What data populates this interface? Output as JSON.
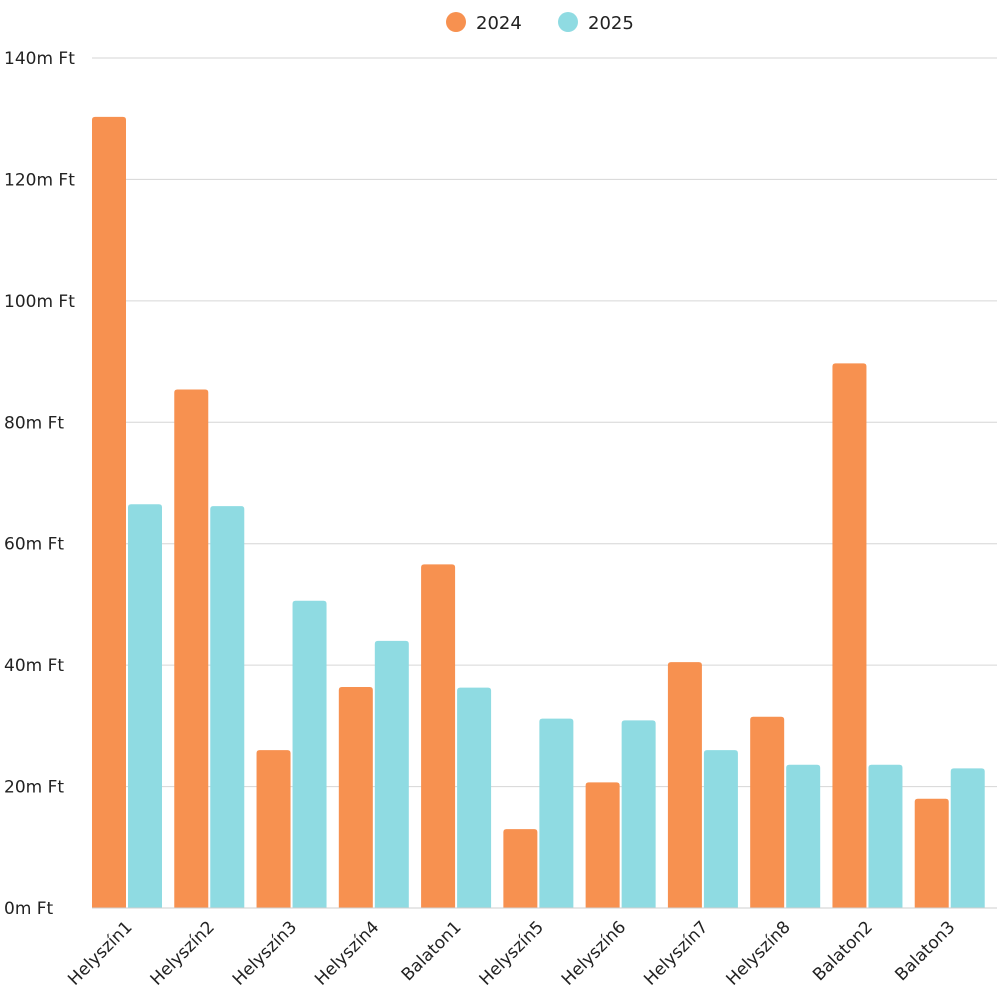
{
  "chart_data": {
    "type": "bar",
    "categories": [
      "Helyszín1",
      "Helyszín2",
      "Helyszín3",
      "Helyszín4",
      "Balaton1",
      "Helyszín5",
      "Helyszín6",
      "Helyszín7",
      "Helyszín8",
      "Balaton2",
      "Balaton3"
    ],
    "series": [
      {
        "name": "2024",
        "color": "#F79150",
        "values": [
          130.3,
          85.4,
          26.0,
          36.4,
          56.6,
          13.0,
          20.7,
          40.5,
          31.5,
          89.7,
          18.0
        ]
      },
      {
        "name": "2025",
        "color": "#8FDBE2",
        "values": [
          66.5,
          66.2,
          50.6,
          44.0,
          36.3,
          31.2,
          30.9,
          26.0,
          23.6,
          23.6,
          23.0
        ]
      }
    ],
    "ylim": [
      0,
      140
    ],
    "yticks": [
      "0m Ft",
      "20m Ft",
      "40m Ft",
      "60m Ft",
      "80m Ft",
      "100m Ft",
      "120m Ft",
      "140m Ft"
    ],
    "ytick_values": [
      0,
      20,
      40,
      60,
      80,
      100,
      120,
      140
    ],
    "grid": true,
    "legend": "top-center",
    "title": "",
    "xlabel": "",
    "ylabel": ""
  }
}
